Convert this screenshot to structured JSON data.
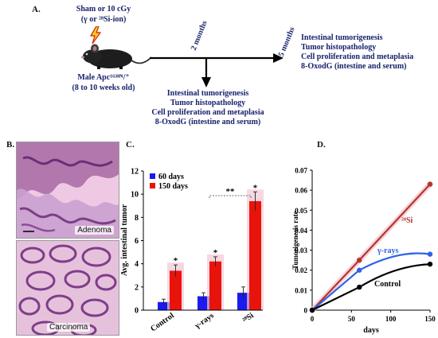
{
  "panelA": {
    "letter": "A.",
    "dose": "Sham or 10 cGy",
    "radiation": "(γ or ²⁸Si-ion)",
    "mouse_strain": "Male Apc¹⁶³⁸ᴺ/⁺",
    "mouse_age": "(8 to 10 weeks old)",
    "time_2": "2 months",
    "time_5": "5 months",
    "endpoints_2": [
      "Intestinal tumorigenesis",
      "Tumor histopathology",
      "Cell proliferation and metaplasia",
      "8-OxodG (intestine and serum)"
    ],
    "endpoints_5": [
      "Intestinal tumorigenesis",
      "Tumor histopathology",
      "Cell proliferation and metaplasia",
      "8-OxodG (intestine and serum)"
    ]
  },
  "panelB": {
    "letter": "B.",
    "top_label": "Adenoma",
    "bottom_label": "Carcinoma"
  },
  "colors": {
    "navy": "#17226b",
    "blue_bar": "#1a1aee",
    "red_bar": "#e8140c",
    "si_line": "#b5362a",
    "gamma_line": "#2f62e6",
    "control_line": "#000000",
    "highlight": "#f4c8d6"
  },
  "panelC": {
    "letter": "C.",
    "chart_data": {
      "type": "bar",
      "ylabel": "Avg. intestinal tumor",
      "ylim": [
        0,
        12
      ],
      "yticks": [
        "0",
        "2",
        "4",
        "6",
        "8",
        "10",
        "12"
      ],
      "categories": [
        "Control",
        "γ-rays",
        "²⁸Si"
      ],
      "series": [
        {
          "name": "60 days",
          "values": [
            0.7,
            1.2,
            1.5
          ],
          "errors": [
            0.25,
            0.3,
            0.5
          ]
        },
        {
          "name": "150 days",
          "values": [
            3.4,
            4.2,
            9.4
          ],
          "errors": [
            0.5,
            0.4,
            0.8
          ]
        }
      ],
      "legend": "top-left",
      "annotations": {
        "star": "*",
        "bracket": "**"
      }
    }
  },
  "panelD": {
    "letter": "D.",
    "chart_data": {
      "type": "line",
      "xlabel": "days",
      "ylabel": "Tumorigenesis rate",
      "xlim": [
        0,
        150
      ],
      "ylim": [
        0,
        0.07
      ],
      "xticks": [
        "0",
        "50",
        "100",
        "150"
      ],
      "yticks": [
        "0",
        "0.01",
        "0.02",
        "0.03",
        "0.04",
        "0.05",
        "0.06",
        "0.07"
      ],
      "series": [
        {
          "name": "²⁸Si",
          "x": [
            0,
            60,
            150
          ],
          "y": [
            0,
            0.025,
            0.063
          ]
        },
        {
          "name": "γ-rays",
          "x": [
            0,
            60,
            150
          ],
          "y": [
            0,
            0.02,
            0.028
          ]
        },
        {
          "name": "Control",
          "x": [
            0,
            60,
            150
          ],
          "y": [
            0,
            0.0115,
            0.023
          ]
        }
      ]
    }
  }
}
